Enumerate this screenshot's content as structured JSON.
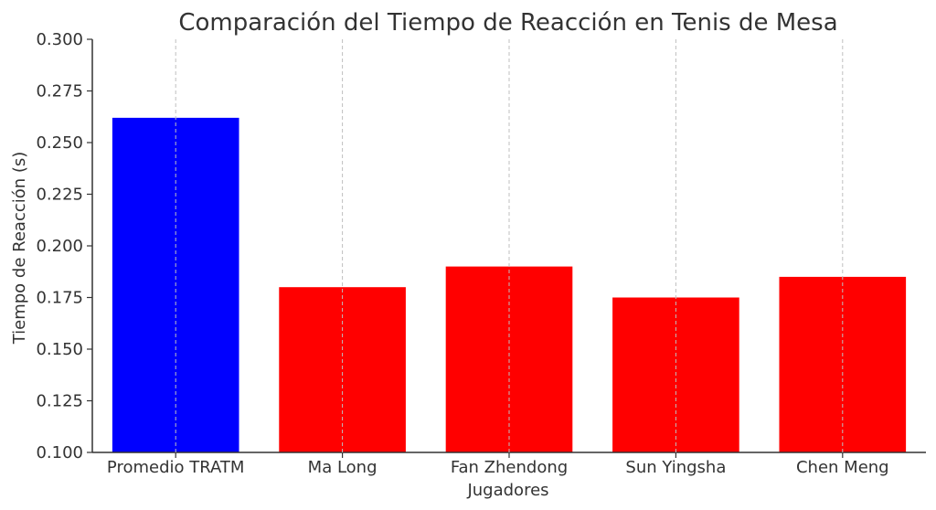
{
  "chart_data": {
    "type": "bar",
    "title": "Comparación del Tiempo de Reacción en Tenis de Mesa",
    "xlabel": "Jugadores",
    "ylabel": "Tiempo de Reacción (s)",
    "categories": [
      "Promedio TRATM",
      "Ma Long",
      "Fan Zhendong",
      "Sun Yingsha",
      "Chen Meng"
    ],
    "values": [
      0.262,
      0.18,
      0.19,
      0.175,
      0.185
    ],
    "bar_colors": [
      "#0000ff",
      "#ff0000",
      "#ff0000",
      "#ff0000",
      "#ff0000"
    ],
    "ylim": [
      0.1,
      0.3
    ],
    "yticks": [
      "0.100",
      "0.125",
      "0.150",
      "0.175",
      "0.200",
      "0.225",
      "0.250",
      "0.275",
      "0.300"
    ],
    "grid": "vertical dashed at category centers",
    "legend": "none"
  }
}
